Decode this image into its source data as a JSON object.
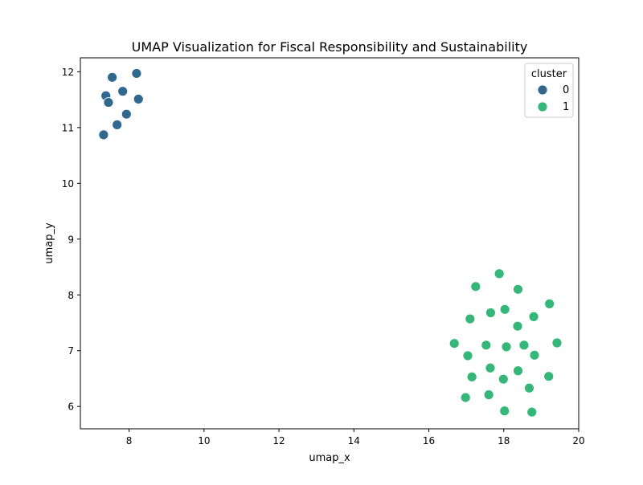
{
  "chart_data": {
    "type": "scatter",
    "title": "UMAP Visualization for Fiscal Responsibility and Sustainability",
    "xlabel": "umap_x",
    "ylabel": "umap_y",
    "xlim": [
      6.7,
      20.0
    ],
    "ylim": [
      5.6,
      12.25
    ],
    "xticks": [
      8,
      10,
      12,
      14,
      16,
      18,
      20
    ],
    "yticks": [
      6,
      7,
      8,
      9,
      10,
      11,
      12
    ],
    "grid": false,
    "legend": {
      "title": "cluster",
      "placement": "top-right",
      "entries": [
        "0",
        "1"
      ]
    },
    "colors": {
      "0": "#31688e",
      "1": "#35b779"
    },
    "series": [
      {
        "name": "0",
        "points": [
          {
            "x": 8.2,
            "y": 11.97
          },
          {
            "x": 7.55,
            "y": 11.9
          },
          {
            "x": 7.83,
            "y": 11.65
          },
          {
            "x": 7.38,
            "y": 11.57
          },
          {
            "x": 8.25,
            "y": 11.51
          },
          {
            "x": 7.45,
            "y": 11.45
          },
          {
            "x": 7.93,
            "y": 11.24
          },
          {
            "x": 7.68,
            "y": 11.05
          },
          {
            "x": 7.32,
            "y": 10.87
          }
        ]
      },
      {
        "name": "1",
        "points": [
          {
            "x": 17.88,
            "y": 8.38
          },
          {
            "x": 17.25,
            "y": 8.15
          },
          {
            "x": 18.38,
            "y": 8.1
          },
          {
            "x": 19.22,
            "y": 7.84
          },
          {
            "x": 18.03,
            "y": 7.74
          },
          {
            "x": 17.65,
            "y": 7.68
          },
          {
            "x": 18.8,
            "y": 7.61
          },
          {
            "x": 17.1,
            "y": 7.57
          },
          {
            "x": 18.37,
            "y": 7.44
          },
          {
            "x": 16.68,
            "y": 7.13
          },
          {
            "x": 19.42,
            "y": 7.14
          },
          {
            "x": 17.53,
            "y": 7.1
          },
          {
            "x": 18.07,
            "y": 7.07
          },
          {
            "x": 18.54,
            "y": 7.1
          },
          {
            "x": 17.04,
            "y": 6.91
          },
          {
            "x": 18.82,
            "y": 6.92
          },
          {
            "x": 17.64,
            "y": 6.69
          },
          {
            "x": 18.38,
            "y": 6.64
          },
          {
            "x": 17.15,
            "y": 6.53
          },
          {
            "x": 19.2,
            "y": 6.54
          },
          {
            "x": 17.99,
            "y": 6.49
          },
          {
            "x": 18.68,
            "y": 6.33
          },
          {
            "x": 17.6,
            "y": 6.21
          },
          {
            "x": 16.98,
            "y": 6.16
          },
          {
            "x": 18.02,
            "y": 5.92
          },
          {
            "x": 18.75,
            "y": 5.9
          }
        ]
      }
    ]
  }
}
